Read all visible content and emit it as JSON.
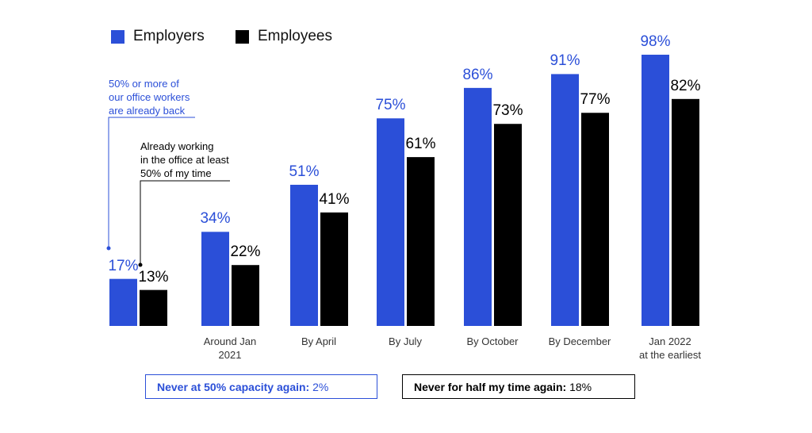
{
  "chart_data": {
    "type": "bar",
    "categories": [
      null,
      "Around Jan\n2021",
      "By April",
      "By July",
      "By October",
      "By December",
      "Jan 2022\nat the earliest"
    ],
    "series": [
      {
        "name": "Employers",
        "color": "#2b4fd8",
        "values": [
          17,
          34,
          51,
          75,
          86,
          91,
          98
        ],
        "value_labels": [
          "17%",
          "34%",
          "51%",
          "75%",
          "86%",
          "91%",
          "98%"
        ]
      },
      {
        "name": "Employees",
        "color": "#000000",
        "values": [
          13,
          22,
          41,
          61,
          73,
          77,
          82
        ],
        "value_labels": [
          "13%",
          "22%",
          "41%",
          "61%",
          "73%",
          "77%",
          "82%"
        ]
      }
    ],
    "annotations": [
      {
        "text": "50% or more of\nour office workers\nare already back",
        "color": "#2b4fd8"
      },
      {
        "text": "Already working\nin the office at least\n50% of my time",
        "color": "#000000"
      }
    ],
    "notes": [
      {
        "label": "Never at 50% capacity again:",
        "value": 2,
        "value_label": "2%",
        "color": "#2b4fd8"
      },
      {
        "label": "Never for half my time again:",
        "value": 18,
        "value_label": "18%",
        "color": "#000000"
      }
    ]
  }
}
